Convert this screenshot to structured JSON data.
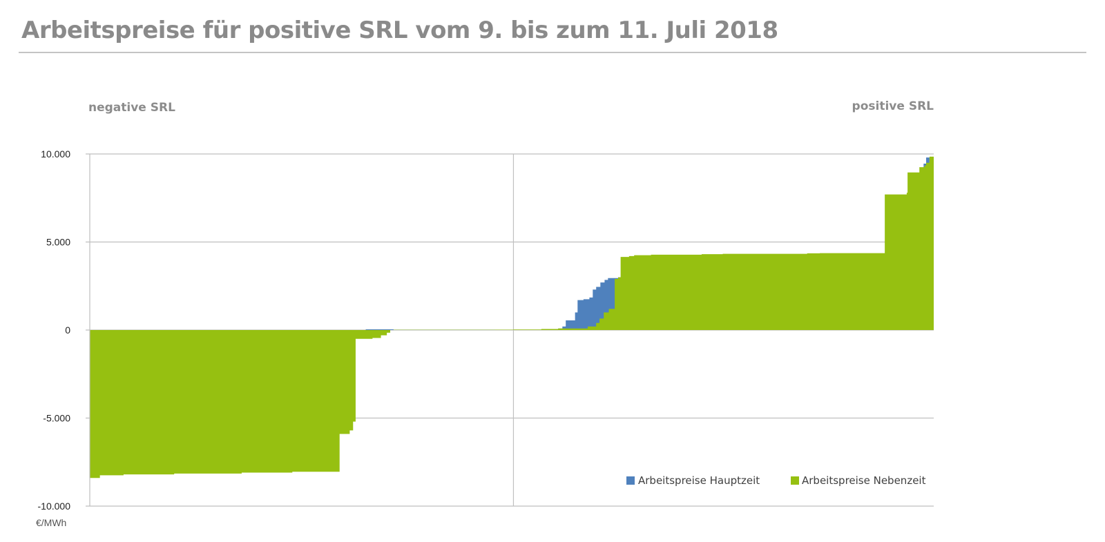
{
  "title": "Arbeitspreise für positive SRL vom 9. bis zum 11. Juli 2018",
  "colors": {
    "hauptzeit": "#4f81bd",
    "nebenzeit": "#96c011",
    "grid": "#bfbfbf",
    "title": "#8a8a8a"
  },
  "chart_data": {
    "type": "area",
    "title": "Arbeitspreise für positive SRL vom 9. bis zum 11. Juli 2018",
    "ylabel": "€/MWh",
    "ylim": [
      -10000,
      10000
    ],
    "yticks": [
      {
        "value": 10000,
        "label": "10.000"
      },
      {
        "value": 5000,
        "label": "5.000"
      },
      {
        "value": 0,
        "label": "0"
      },
      {
        "value": -5000,
        "label": "-5.000"
      },
      {
        "value": -10000,
        "label": "-10.000"
      }
    ],
    "xlim": [
      0,
      100
    ],
    "x_divider": 50.2,
    "grid": true,
    "legend_position": "bottom-right",
    "section_labels": {
      "left": "negative SRL",
      "right": "positive SRL"
    },
    "series": [
      {
        "name": "Arbeitspreise Nebenzeit",
        "color": "#96c011",
        "steps": [
          [
            0,
            -8400
          ],
          [
            1.2,
            -8250
          ],
          [
            4.0,
            -8200
          ],
          [
            10.0,
            -8150
          ],
          [
            18.0,
            -8100
          ],
          [
            24.0,
            -8050
          ],
          [
            29.6,
            -5900
          ],
          [
            30.8,
            -5700
          ],
          [
            31.2,
            -5200
          ],
          [
            31.5,
            -500
          ],
          [
            33.5,
            -450
          ],
          [
            34.5,
            -300
          ],
          [
            35.2,
            -150
          ],
          [
            35.6,
            0
          ],
          [
            36.0,
            15
          ],
          [
            48.0,
            20
          ],
          [
            50.2,
            30
          ],
          [
            53.5,
            60
          ],
          [
            55.5,
            90
          ],
          [
            59.0,
            200
          ],
          [
            60.0,
            400
          ],
          [
            60.4,
            650
          ],
          [
            60.9,
            1000
          ],
          [
            61.5,
            1200
          ],
          [
            62.2,
            2900
          ],
          [
            62.6,
            3000
          ],
          [
            62.9,
            4150
          ],
          [
            63.9,
            4200
          ],
          [
            64.5,
            4250
          ],
          [
            66.5,
            4280
          ],
          [
            72.5,
            4310
          ],
          [
            75.0,
            4330
          ],
          [
            85.0,
            4360
          ],
          [
            86.5,
            4370
          ],
          [
            94.2,
            7700
          ],
          [
            96.8,
            7800
          ],
          [
            96.9,
            8950
          ],
          [
            98.3,
            9250
          ],
          [
            98.9,
            9350
          ],
          [
            99.1,
            9500
          ],
          [
            99.5,
            9850
          ]
        ],
        "x_end": 100
      },
      {
        "name": "Arbeitspreise Hauptzeit",
        "color": "#4f81bd",
        "steps": [
          [
            32.7,
            40
          ],
          [
            36.0,
            15
          ],
          [
            55.5,
            90
          ],
          [
            56.0,
            200
          ],
          [
            56.4,
            550
          ],
          [
            57.5,
            1000
          ],
          [
            57.8,
            1700
          ],
          [
            58.5,
            1750
          ],
          [
            59.2,
            1850
          ],
          [
            59.6,
            2300
          ],
          [
            60.0,
            2450
          ],
          [
            60.5,
            2700
          ],
          [
            61.0,
            2850
          ],
          [
            61.4,
            2950
          ],
          [
            62.0,
            2950
          ],
          [
            98.8,
            9450
          ],
          [
            99.1,
            9800
          ]
        ],
        "x_end": 99.5
      }
    ]
  }
}
